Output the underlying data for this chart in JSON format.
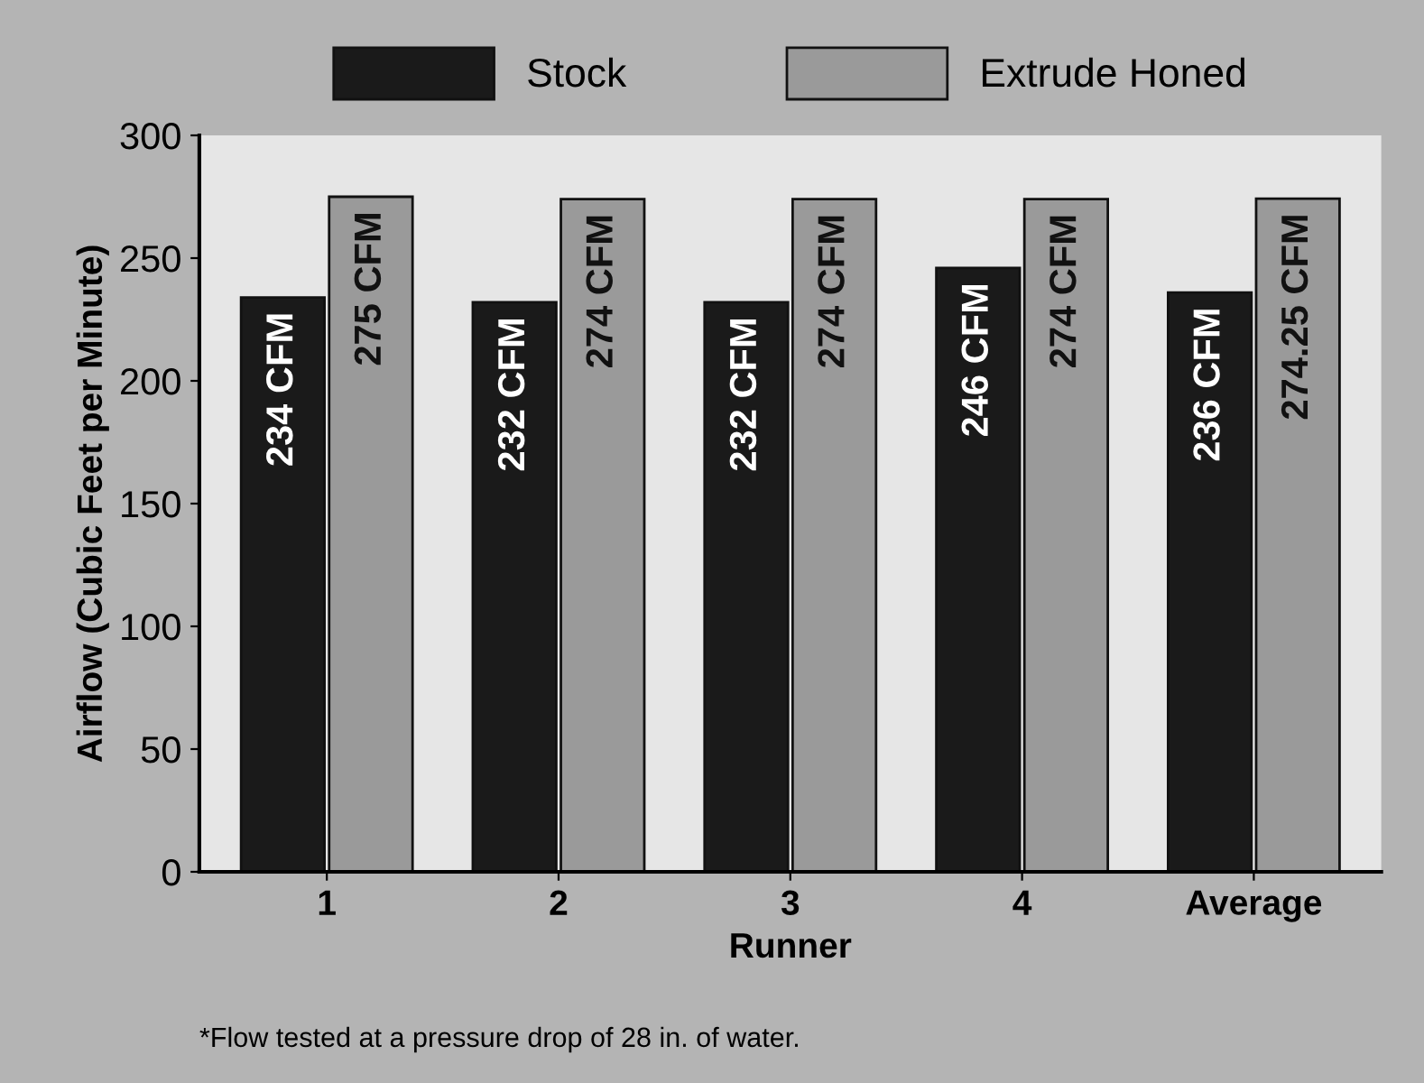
{
  "chart_data": {
    "type": "bar",
    "xlabel": "Runner",
    "ylabel": "Airflow (Cubic Feet per Minute)",
    "categories": [
      "1",
      "2",
      "3",
      "4",
      "Average"
    ],
    "series": [
      {
        "name": "Stock",
        "color": "#1a1a1a",
        "values": [
          234,
          232,
          232,
          246,
          236
        ],
        "value_labels": [
          "234 CFM",
          "232 CFM",
          "232 CFM",
          "246 CFM",
          "236 CFM"
        ]
      },
      {
        "name": "Extrude Honed",
        "color": "#9a9a9a",
        "values": [
          275,
          274,
          274,
          274,
          274.25
        ],
        "value_labels": [
          "275 CFM",
          "274 CFM",
          "274 CFM",
          "274 CFM",
          "274.25 CFM"
        ]
      }
    ],
    "ylim": [
      0,
      300
    ],
    "yticks": [
      0,
      50,
      100,
      150,
      200,
      250,
      300
    ],
    "grid": false,
    "legend": "top",
    "annotations": [
      "*Flow tested at a pressure drop of 28 in. of water."
    ]
  }
}
